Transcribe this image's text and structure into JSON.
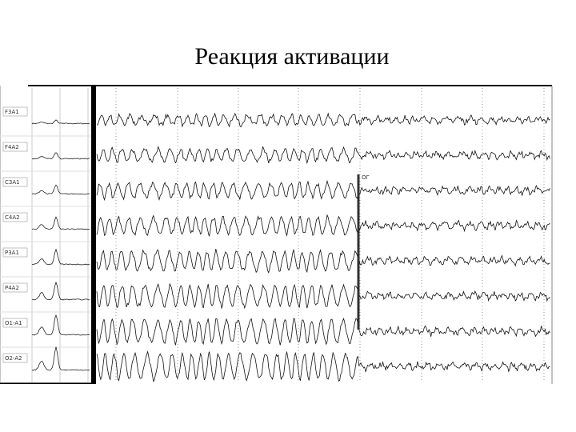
{
  "title": "Реакция активации",
  "channels": [
    "F3A1",
    "F4A2",
    "C3A1",
    "C4A2",
    "P3A1",
    "P4A2",
    "O1-A1",
    "O2-A2"
  ],
  "marker": "ОГ"
}
